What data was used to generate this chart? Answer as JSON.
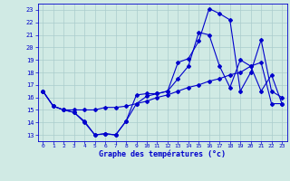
{
  "title": "Graphe des températures (°c)",
  "bg_color": "#d0eae4",
  "line_color": "#0000cc",
  "grid_color": "#aacccc",
  "x_ticks": [
    0,
    1,
    2,
    3,
    4,
    5,
    6,
    7,
    8,
    9,
    10,
    11,
    12,
    13,
    14,
    15,
    16,
    17,
    18,
    19,
    20,
    21,
    22,
    23
  ],
  "y_ticks": [
    13,
    14,
    15,
    16,
    17,
    18,
    19,
    20,
    21,
    22,
    23
  ],
  "xlim": [
    -0.5,
    23.5
  ],
  "ylim": [
    12.5,
    23.5
  ],
  "series1_x": [
    0,
    1,
    2,
    3,
    4,
    5,
    6,
    7,
    8,
    9,
    10,
    11,
    12,
    13,
    14,
    15,
    16,
    17,
    18,
    19,
    20,
    21,
    22,
    23
  ],
  "series1_y": [
    16.5,
    15.3,
    15.0,
    14.8,
    14.1,
    13.0,
    13.1,
    13.0,
    14.1,
    16.2,
    16.3,
    16.3,
    16.5,
    18.8,
    19.1,
    20.5,
    23.1,
    22.7,
    22.2,
    16.5,
    18.0,
    20.6,
    16.5,
    16.0
  ],
  "series2_x": [
    0,
    1,
    2,
    3,
    4,
    5,
    6,
    7,
    8,
    9,
    10,
    11,
    12,
    13,
    14,
    15,
    16,
    17,
    18,
    19,
    20,
    21,
    22,
    23
  ],
  "series2_y": [
    16.5,
    15.3,
    15.0,
    14.8,
    14.0,
    13.0,
    13.1,
    13.0,
    14.1,
    15.5,
    16.1,
    16.3,
    16.5,
    17.5,
    18.5,
    21.2,
    21.0,
    18.5,
    16.8,
    19.0,
    18.5,
    16.5,
    17.8,
    15.5
  ],
  "series3_x": [
    0,
    1,
    2,
    3,
    4,
    5,
    6,
    7,
    8,
    9,
    10,
    11,
    12,
    13,
    14,
    15,
    16,
    17,
    18,
    19,
    20,
    21,
    22,
    23
  ],
  "series3_y": [
    16.5,
    15.3,
    15.0,
    15.0,
    15.0,
    15.0,
    15.2,
    15.2,
    15.3,
    15.5,
    15.7,
    16.0,
    16.2,
    16.5,
    16.8,
    17.0,
    17.3,
    17.5,
    17.8,
    18.0,
    18.5,
    18.8,
    15.5,
    15.5
  ],
  "marker": "D",
  "markersize": 2.0,
  "linewidth": 0.8
}
